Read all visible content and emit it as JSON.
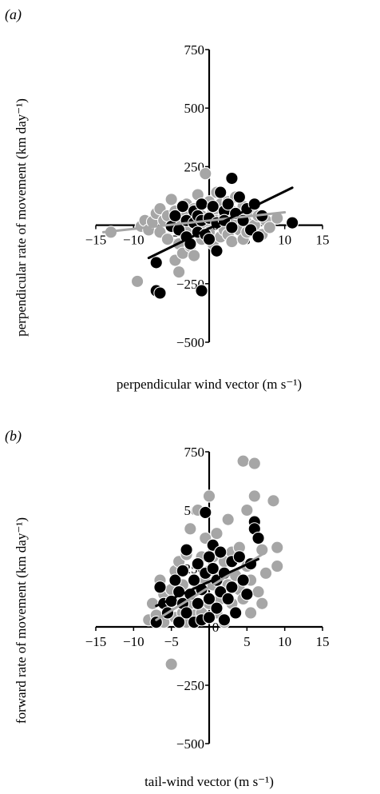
{
  "chart_data": [
    {
      "type": "scatter",
      "panel_label": "(a)",
      "xlabel": "perpendicular wind vector (m s⁻¹)",
      "ylabel": "perpendicular rate of movement (km day⁻¹)",
      "xlim": [
        -15,
        15
      ],
      "ylim": [
        -500,
        750
      ],
      "x_ticks": [
        "−15",
        "−10",
        "−5",
        "0",
        "5",
        "10",
        "15"
      ],
      "y_ticks": [
        "750",
        "500",
        "250",
        "−250",
        "−500"
      ],
      "series": [
        {
          "color": "#a6a6a6",
          "points": [
            [
              -13,
              -30
            ],
            [
              -9.5,
              -240
            ],
            [
              -9,
              -5
            ],
            [
              -8.5,
              20
            ],
            [
              -8,
              -20
            ],
            [
              -7.5,
              15
            ],
            [
              -7,
              50
            ],
            [
              -6.5,
              -30
            ],
            [
              -6.5,
              70
            ],
            [
              -6,
              20
            ],
            [
              -5.5,
              -60
            ],
            [
              -5.5,
              40
            ],
            [
              -5,
              110
            ],
            [
              -5,
              -10
            ],
            [
              -4.5,
              -150
            ],
            [
              -4.5,
              60
            ],
            [
              -4,
              -80
            ],
            [
              -4,
              -200
            ],
            [
              -4,
              10
            ],
            [
              -3.5,
              -120
            ],
            [
              -3.5,
              50
            ],
            [
              -3,
              -30
            ],
            [
              -3,
              90
            ],
            [
              -2.5,
              -90
            ],
            [
              -2.5,
              20
            ],
            [
              -2,
              -130
            ],
            [
              -2,
              70
            ],
            [
              -1.5,
              -20
            ],
            [
              -1.5,
              130
            ],
            [
              -1,
              -60
            ],
            [
              -1,
              40
            ],
            [
              -0.5,
              220
            ],
            [
              -0.5,
              -10
            ],
            [
              0,
              100
            ],
            [
              0,
              -30
            ],
            [
              0.5,
              60
            ],
            [
              0.5,
              -80
            ],
            [
              1,
              140
            ],
            [
              1,
              20
            ],
            [
              1.5,
              -50
            ],
            [
              1.5,
              90
            ],
            [
              2,
              -20
            ],
            [
              2,
              40
            ],
            [
              2.5,
              100
            ],
            [
              2.5,
              -40
            ],
            [
              3,
              60
            ],
            [
              3,
              -70
            ],
            [
              3.5,
              20
            ],
            [
              3.5,
              120
            ],
            [
              4,
              -20
            ],
            [
              4,
              50
            ],
            [
              4.5,
              -60
            ],
            [
              4.5,
              80
            ],
            [
              5,
              10
            ],
            [
              5,
              -30
            ],
            [
              5.5,
              60
            ],
            [
              6,
              0
            ],
            [
              6.5,
              40
            ],
            [
              7,
              -40
            ],
            [
              7.5,
              20
            ],
            [
              8,
              -10
            ],
            [
              9,
              30
            ]
          ],
          "trend": [
            [
              -14,
              -30
            ],
            [
              10,
              55
            ]
          ]
        },
        {
          "color": "#000000",
          "points": [
            [
              -7,
              -280
            ],
            [
              -6.5,
              -290
            ],
            [
              -7,
              -160
            ],
            [
              -5,
              -5
            ],
            [
              -4.5,
              40
            ],
            [
              -4,
              -20
            ],
            [
              -3.5,
              80
            ],
            [
              -3,
              -50
            ],
            [
              -3,
              20
            ],
            [
              -2.5,
              -80
            ],
            [
              -2,
              10
            ],
            [
              -2,
              60
            ],
            [
              -1.5,
              -30
            ],
            [
              -1.5,
              40
            ],
            [
              -1,
              20
            ],
            [
              -1,
              90
            ],
            [
              -0.5,
              -40
            ],
            [
              0,
              30
            ],
            [
              0,
              -60
            ],
            [
              0.5,
              80
            ],
            [
              1,
              10
            ],
            [
              1,
              -110
            ],
            [
              1.5,
              140
            ],
            [
              2,
              60
            ],
            [
              2,
              20
            ],
            [
              2.5,
              90
            ],
            [
              3,
              200
            ],
            [
              3,
              -10
            ],
            [
              3.5,
              50
            ],
            [
              4,
              120
            ],
            [
              4.5,
              20
            ],
            [
              5,
              70
            ],
            [
              5.5,
              -20
            ],
            [
              6,
              90
            ],
            [
              6.5,
              -50
            ],
            [
              7,
              40
            ],
            [
              -1,
              -280
            ],
            [
              11,
              10
            ]
          ],
          "trend": [
            [
              -8,
              -140
            ],
            [
              11,
              160
            ]
          ]
        }
      ]
    },
    {
      "type": "scatter",
      "panel_label": "(b)",
      "xlabel": "tail-wind vector (m s⁻¹)",
      "ylabel": "forward rate of movement (km day⁻¹)",
      "xlim": [
        -15,
        15
      ],
      "ylim": [
        -500,
        750
      ],
      "x_ticks": [
        "−15",
        "−10",
        "−5",
        "0",
        "5",
        "10",
        "15"
      ],
      "y_ticks": [
        "750",
        "500",
        "250",
        "−250",
        "−500"
      ],
      "series": [
        {
          "color": "#a6a6a6",
          "points": [
            [
              -8,
              30
            ],
            [
              -7.5,
              100
            ],
            [
              -7,
              50
            ],
            [
              -6.5,
              200
            ],
            [
              -6,
              20
            ],
            [
              -6,
              140
            ],
            [
              -5.5,
              80
            ],
            [
              -5,
              -160
            ],
            [
              -5,
              160
            ],
            [
              -4.5,
              40
            ],
            [
              -4.5,
              240
            ],
            [
              -4,
              120
            ],
            [
              -4,
              280
            ],
            [
              -3.5,
              60
            ],
            [
              -3.5,
              180
            ],
            [
              -3,
              20
            ],
            [
              -3,
              310
            ],
            [
              -2.5,
              100
            ],
            [
              -2.5,
              420
            ],
            [
              -2,
              200
            ],
            [
              -2,
              50
            ],
            [
              -1.5,
              500
            ],
            [
              -1.5,
              160
            ],
            [
              -1,
              300
            ],
            [
              -1,
              60
            ],
            [
              -0.5,
              200
            ],
            [
              -0.5,
              380
            ],
            [
              0,
              560
            ],
            [
              0,
              240
            ],
            [
              0,
              100
            ],
            [
              0.5,
              300
            ],
            [
              0.5,
              180
            ],
            [
              1,
              60
            ],
            [
              1,
              400
            ],
            [
              1.5,
              220
            ],
            [
              1.5,
              120
            ],
            [
              2,
              280
            ],
            [
              2,
              20
            ],
            [
              2.5,
              460
            ],
            [
              2.5,
              180
            ],
            [
              3,
              100
            ],
            [
              3,
              320
            ],
            [
              3.5,
              220
            ],
            [
              3.5,
              60
            ],
            [
              4,
              160
            ],
            [
              4,
              340
            ],
            [
              4.5,
              710
            ],
            [
              4.5,
              120
            ],
            [
              5,
              500
            ],
            [
              5,
              260
            ],
            [
              5.5,
              200
            ],
            [
              5.5,
              60
            ],
            [
              6,
              700
            ],
            [
              6,
              560
            ],
            [
              6.5,
              150
            ],
            [
              7,
              330
            ],
            [
              7,
              100
            ],
            [
              7.5,
              230
            ],
            [
              8.5,
              540
            ],
            [
              9,
              260
            ],
            [
              9,
              340
            ]
          ],
          "trend": [
            [
              -7,
              30
            ],
            [
              7,
              310
            ]
          ]
        },
        {
          "color": "#000000",
          "points": [
            [
              -7,
              20
            ],
            [
              -6.5,
              170
            ],
            [
              -6,
              100
            ],
            [
              -5.5,
              60
            ],
            [
              -5,
              110
            ],
            [
              -4.5,
              200
            ],
            [
              -4,
              20
            ],
            [
              -4,
              150
            ],
            [
              -3.5,
              100
            ],
            [
              -3.5,
              240
            ],
            [
              -3,
              330
            ],
            [
              -3,
              60
            ],
            [
              -2.5,
              140
            ],
            [
              -2,
              20
            ],
            [
              -2,
              200
            ],
            [
              -1.5,
              100
            ],
            [
              -1.5,
              270
            ],
            [
              -1,
              160
            ],
            [
              -1,
              30
            ],
            [
              -0.5,
              490
            ],
            [
              -0.5,
              230
            ],
            [
              0,
              300
            ],
            [
              0,
              120
            ],
            [
              0,
              40
            ],
            [
              0.5,
              250
            ],
            [
              0.5,
              350
            ],
            [
              1,
              200
            ],
            [
              1,
              80
            ],
            [
              1.5,
              320
            ],
            [
              1.5,
              150
            ],
            [
              2,
              30
            ],
            [
              2,
              230
            ],
            [
              2.5,
              120
            ],
            [
              3,
              280
            ],
            [
              3,
              170
            ],
            [
              3.5,
              60
            ],
            [
              4,
              300
            ],
            [
              4.5,
              200
            ],
            [
              5,
              140
            ],
            [
              5.5,
              270
            ],
            [
              6,
              450
            ],
            [
              6,
              420
            ],
            [
              6.5,
              380
            ]
          ],
          "trend": [
            [
              -7,
              90
            ],
            [
              6.5,
              290
            ]
          ]
        }
      ]
    }
  ]
}
